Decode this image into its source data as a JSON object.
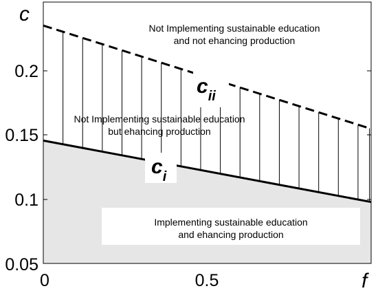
{
  "chart_data": {
    "type": "area",
    "x_range": [
      0,
      1
    ],
    "ylim": [
      0.05,
      0.25
    ],
    "xlabel": "f",
    "ylabel": "c",
    "x_ticks": [
      "0",
      "0.5"
    ],
    "y_ticks": [
      "0.05",
      "0.1",
      "0.15",
      "0.2"
    ],
    "grid": false,
    "curves": [
      {
        "name_main": "c",
        "name_sub": "i",
        "style": "solid",
        "x": [
          0,
          1
        ],
        "y": [
          0.144,
          0.097
        ]
      },
      {
        "name_main": "c",
        "name_sub": "ii",
        "style": "dashed",
        "x": [
          0,
          1
        ],
        "y": [
          0.232,
          0.153
        ]
      }
    ],
    "hatch_x": [
      0.0,
      0.06,
      0.12,
      0.18,
      0.24,
      0.3,
      0.36,
      0.42,
      0.48,
      0.54,
      0.6,
      0.66,
      0.72,
      0.78,
      0.84,
      0.9,
      0.96,
      0.995
    ],
    "regions": [
      {
        "line1": "Not Implementing sustainable education",
        "line2": "and not ehancing production"
      },
      {
        "line1": "Not Implementing sustainable education",
        "line2": "but ehancing production"
      },
      {
        "line1": "Implementing sustainable education",
        "line2": "and ehancing production"
      }
    ],
    "colors": {
      "below_ci": "#e6e6e6",
      "label_box": "#ffffff",
      "line": "#000000"
    }
  }
}
